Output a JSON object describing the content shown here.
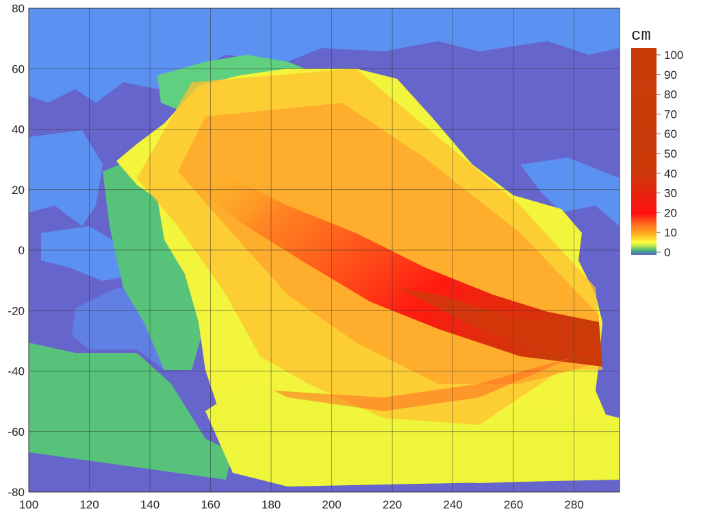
{
  "chart_data": {
    "type": "heatmap",
    "xlim": [
      100,
      295
    ],
    "ylim": [
      -80,
      80
    ],
    "x_ticks": [
      100,
      120,
      140,
      160,
      180,
      200,
      220,
      240,
      260,
      280
    ],
    "y_ticks": [
      80,
      60,
      40,
      20,
      0,
      -20,
      -40,
      -60,
      -80
    ],
    "grid": true,
    "colorbar": {
      "title": "cm",
      "ticks": [
        100,
        90,
        80,
        70,
        60,
        50,
        40,
        30,
        20,
        10,
        0
      ],
      "range": [
        0,
        100
      ],
      "placement": "right",
      "stops": [
        {
          "value": 0,
          "color": "#5b62c8"
        },
        {
          "value": 2,
          "color": "#3fae7a"
        },
        {
          "value": 4,
          "color": "#a8e05a"
        },
        {
          "value": 6,
          "color": "#ffff3c"
        },
        {
          "value": 10,
          "color": "#ffb020"
        },
        {
          "value": 15,
          "color": "#ff6a20"
        },
        {
          "value": 20,
          "color": "#ff1010"
        },
        {
          "value": 40,
          "color": "#cc3a0a"
        },
        {
          "value": 100,
          "color": "#c83c0a"
        }
      ]
    },
    "colors": {
      "land": "#5b92f2",
      "no_data": "#6665cc",
      "grid": "#333333"
    }
  }
}
